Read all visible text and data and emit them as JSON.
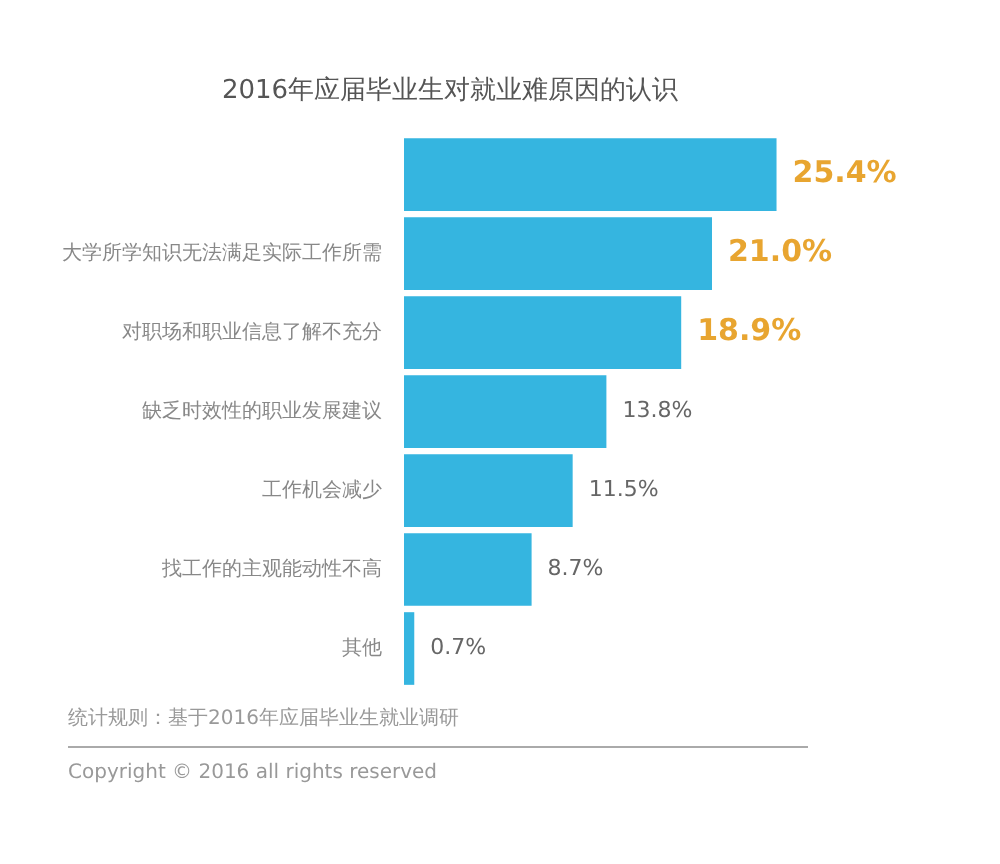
{
  "chart_data": {
    "type": "bar",
    "orientation": "horizontal",
    "title": "2016年应届毕业生对就业难原因的认识",
    "categories": [
      null,
      "大学所学知识无法满足实际工作所需",
      "对职场和职业信息了解不充分",
      "缺乏时效性的职业发展建议",
      "工作机会减少",
      "找工作的主观能动性不高",
      "其他"
    ],
    "values": [
      25.4,
      21.0,
      18.9,
      13.8,
      11.5,
      8.7,
      0.7
    ],
    "value_labels": [
      "25.4%",
      "21.0%",
      "18.9%",
      "13.8%",
      "11.5%",
      "8.7%",
      "0.7%"
    ],
    "color": "#35b5e0",
    "legend": false,
    "annotations": [
      "统计规则：基于2016年应届毕业生就业调研",
      "Copyright © 2016 all rights reserved"
    ]
  }
}
